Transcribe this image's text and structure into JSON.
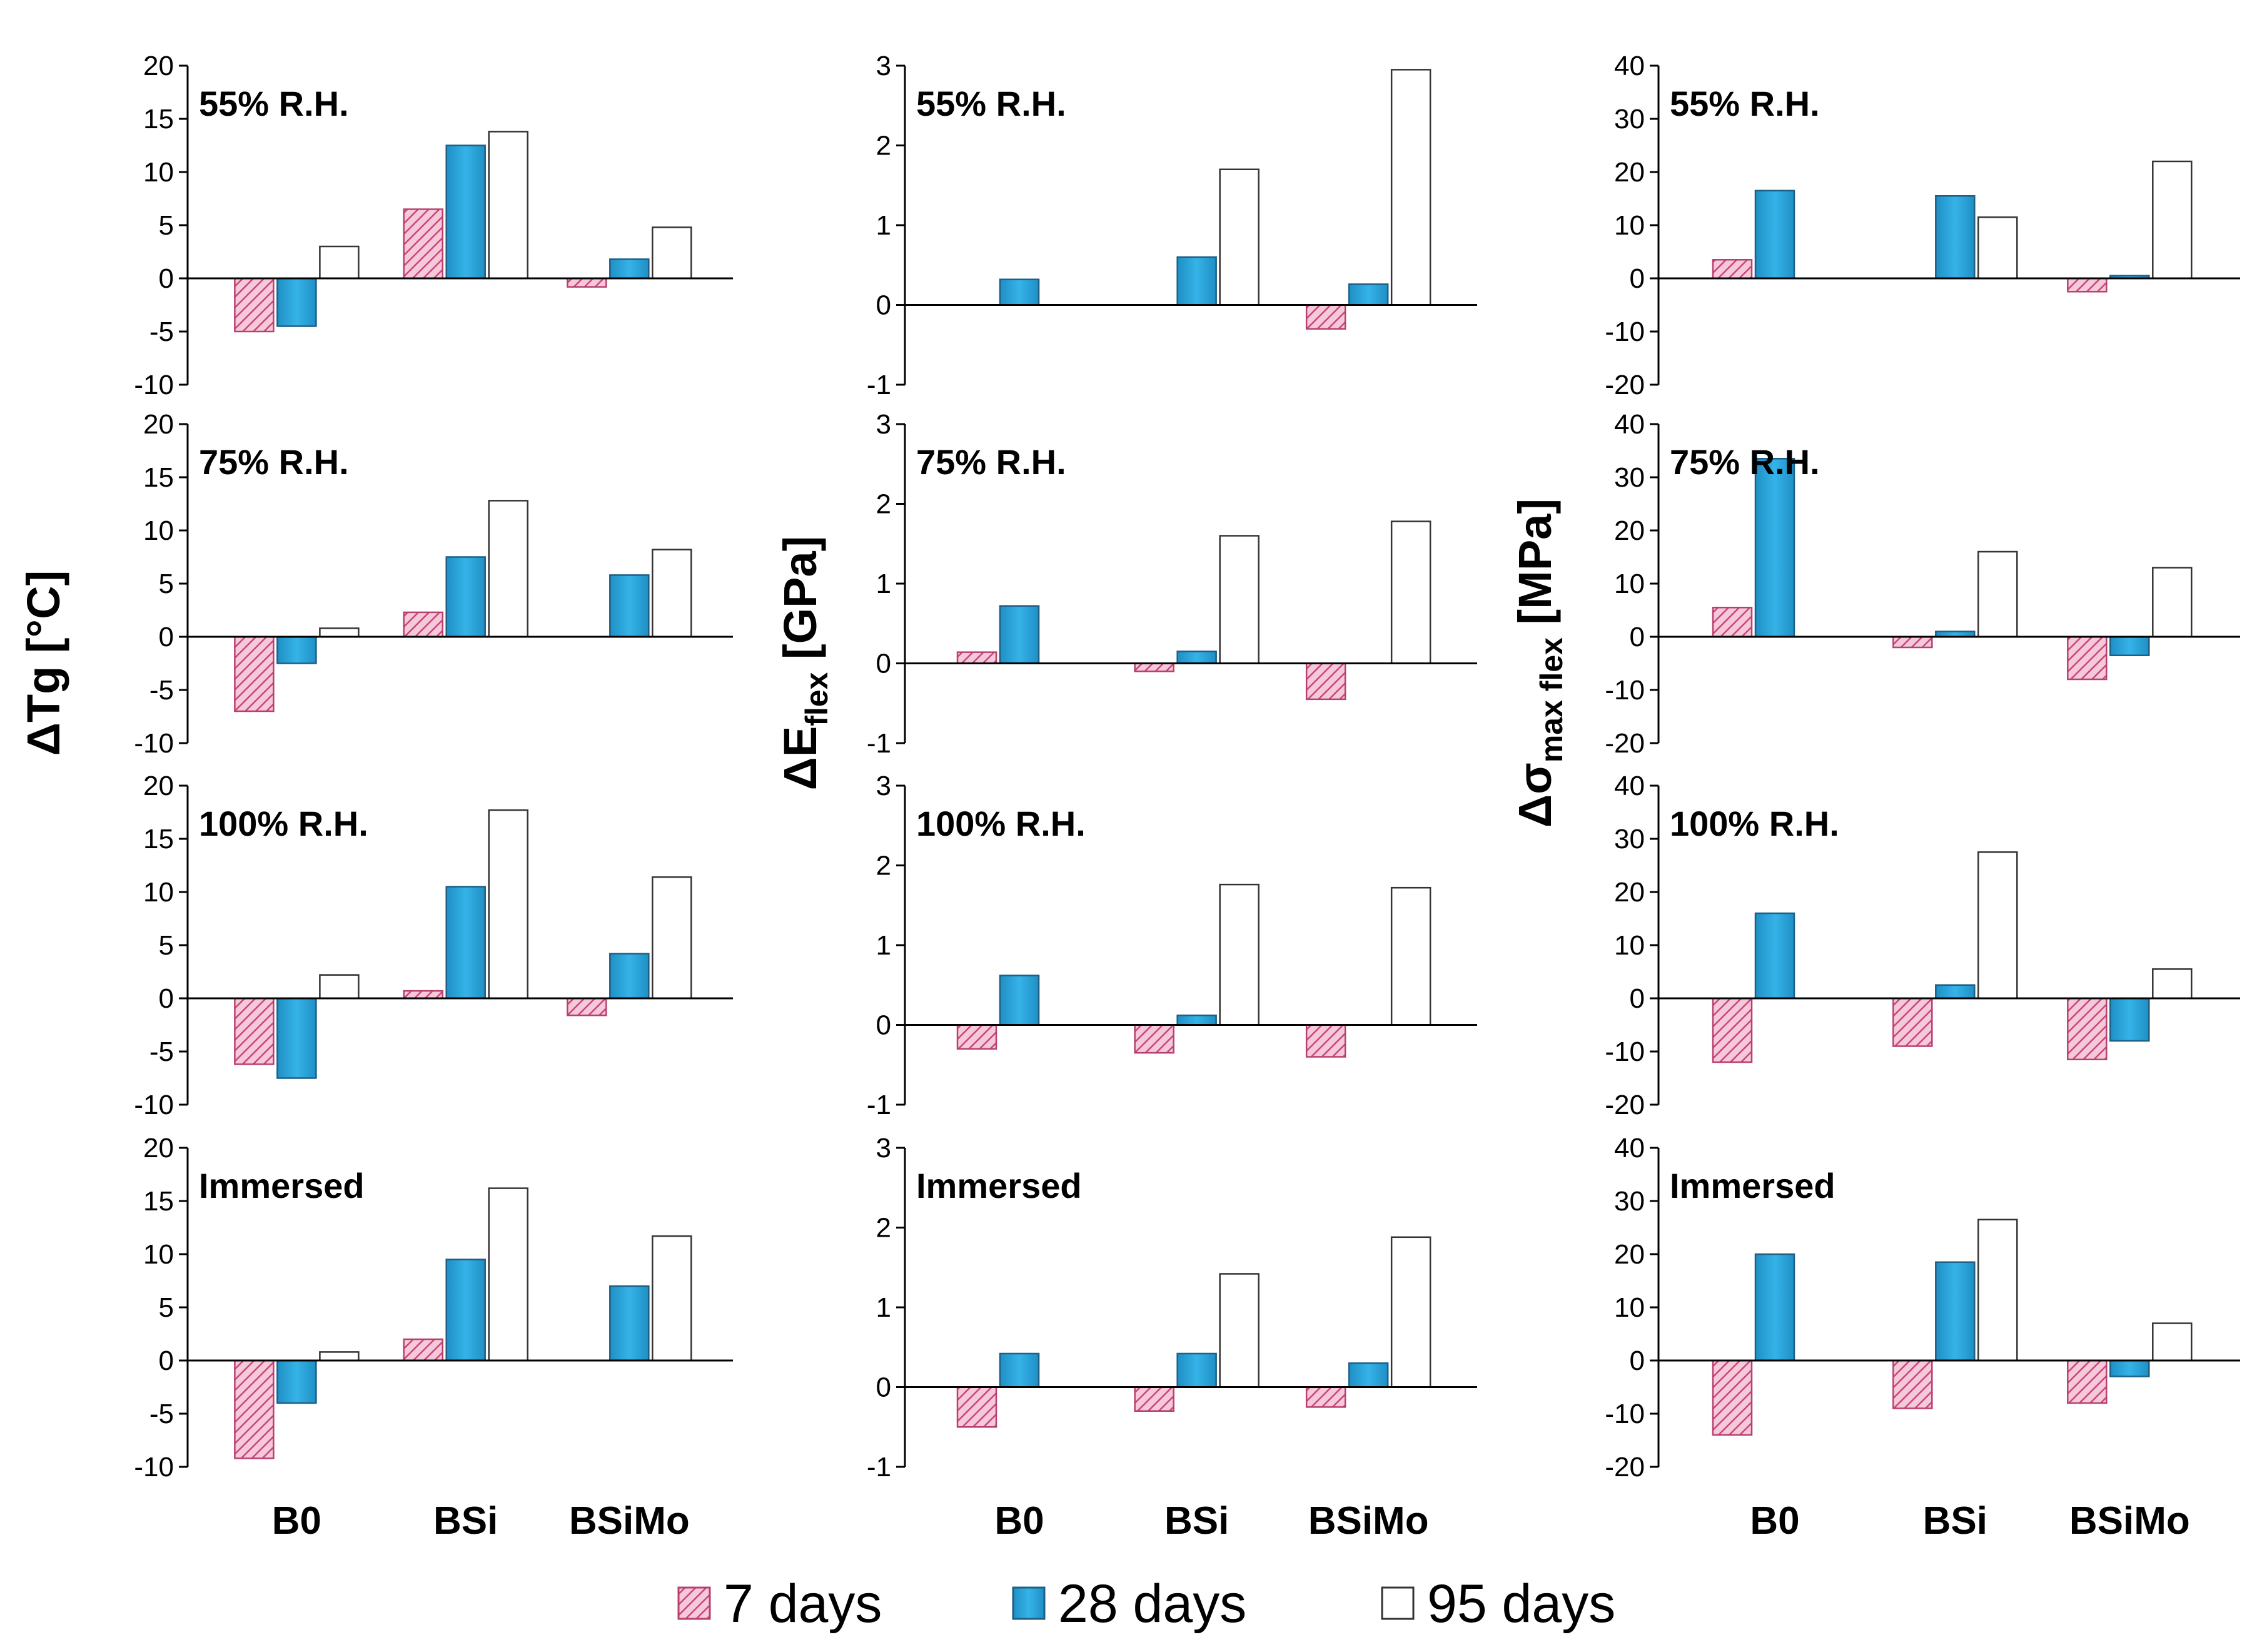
{
  "chart_data": {
    "type": "bar",
    "title": "",
    "categories": [
      "B0",
      "BSi",
      "BSiMo"
    ],
    "legend": {
      "placement": "bottom",
      "entries": [
        {
          "name": "7 days",
          "pattern": "pink-hatched",
          "color": "#e26b9b"
        },
        {
          "name": "28 days",
          "pattern": "solid",
          "color": "#2aa7de"
        },
        {
          "name": "95 days",
          "pattern": "hollow",
          "color": "#ffffff"
        }
      ]
    },
    "conditions": [
      "55% R.H.",
      "75% R.H.",
      "100% R.H.",
      "Immersed"
    ],
    "columns": [
      {
        "ylabel_main": "ΔTg [°C]",
        "ylim": [
          -10,
          20
        ],
        "ticks": [
          "-10",
          "-5",
          "0",
          "5",
          "10",
          "15",
          "20"
        ],
        "tick_values": [
          -10,
          -5,
          0,
          5,
          10,
          15,
          20
        ],
        "panels": [
          {
            "label": "55% R.H.",
            "series": [
              {
                "name": "7 days",
                "values": [
                  -5.0,
                  6.5,
                  -0.8
                ]
              },
              {
                "name": "28 days",
                "values": [
                  -4.5,
                  12.5,
                  1.8
                ]
              },
              {
                "name": "95 days",
                "values": [
                  3.0,
                  13.8,
                  4.8
                ]
              }
            ]
          },
          {
            "label": "75% R.H.",
            "series": [
              {
                "name": "7 days",
                "values": [
                  -7.0,
                  2.3,
                  0.0
                ]
              },
              {
                "name": "28 days",
                "values": [
                  -2.5,
                  7.5,
                  5.8
                ]
              },
              {
                "name": "95 days",
                "values": [
                  0.8,
                  12.8,
                  8.2
                ]
              }
            ]
          },
          {
            "label": "100% R.H.",
            "series": [
              {
                "name": "7 days",
                "values": [
                  -6.2,
                  0.7,
                  -1.6
                ]
              },
              {
                "name": "28 days",
                "values": [
                  -7.5,
                  10.5,
                  4.2
                ]
              },
              {
                "name": "95 days",
                "values": [
                  2.2,
                  17.7,
                  11.4
                ]
              }
            ]
          },
          {
            "label": "Immersed",
            "series": [
              {
                "name": "7 days",
                "values": [
                  -9.2,
                  2.0,
                  0.0
                ]
              },
              {
                "name": "28 days",
                "values": [
                  -4.0,
                  9.5,
                  7.0
                ]
              },
              {
                "name": "95 days",
                "values": [
                  0.8,
                  16.2,
                  11.7
                ]
              }
            ]
          }
        ]
      },
      {
        "ylabel_main": "ΔE",
        "ylabel_sub": "flex",
        "ylabel_tail": " [GPa]",
        "ylim": [
          -1,
          3
        ],
        "ticks": [
          "-1",
          "0",
          "1",
          "2",
          "3"
        ],
        "tick_values": [
          -1,
          0,
          1,
          2,
          3
        ],
        "panels": [
          {
            "label": "55% R.H.",
            "series": [
              {
                "name": "7 days",
                "values": [
                  0.0,
                  0.0,
                  -0.3
                ]
              },
              {
                "name": "28 days",
                "values": [
                  0.32,
                  0.6,
                  0.26
                ]
              },
              {
                "name": "95 days",
                "values": [
                  0.0,
                  1.7,
                  2.95
                ]
              }
            ]
          },
          {
            "label": "75% R.H.",
            "series": [
              {
                "name": "7 days",
                "values": [
                  0.14,
                  -0.1,
                  -0.45
                ]
              },
              {
                "name": "28 days",
                "values": [
                  0.72,
                  0.15,
                  0.0
                ]
              },
              {
                "name": "95 days",
                "values": [
                  0.0,
                  1.6,
                  1.78
                ]
              }
            ]
          },
          {
            "label": "100% R.H.",
            "series": [
              {
                "name": "7 days",
                "values": [
                  -0.3,
                  -0.35,
                  -0.4
                ]
              },
              {
                "name": "28 days",
                "values": [
                  0.62,
                  0.12,
                  0.0
                ]
              },
              {
                "name": "95 days",
                "values": [
                  0.0,
                  1.76,
                  1.72
                ]
              }
            ]
          },
          {
            "label": "Immersed",
            "series": [
              {
                "name": "7 days",
                "values": [
                  -0.5,
                  -0.3,
                  -0.25
                ]
              },
              {
                "name": "28 days",
                "values": [
                  0.42,
                  0.42,
                  0.3
                ]
              },
              {
                "name": "95 days",
                "values": [
                  0.0,
                  1.42,
                  1.88
                ]
              }
            ]
          }
        ]
      },
      {
        "ylabel_main": "Δσ",
        "ylabel_sub": "max flex",
        "ylabel_tail": " [MPa]",
        "ylim": [
          -20,
          40
        ],
        "ticks": [
          "-20",
          "-10",
          "0",
          "10",
          "20",
          "30",
          "40"
        ],
        "tick_values": [
          -20,
          -10,
          0,
          10,
          20,
          30,
          40
        ],
        "panels": [
          {
            "label": "55% R.H.",
            "series": [
              {
                "name": "7 days",
                "values": [
                  3.5,
                  0.0,
                  -2.5
                ]
              },
              {
                "name": "28 days",
                "values": [
                  16.5,
                  15.5,
                  0.5
                ]
              },
              {
                "name": "95 days",
                "values": [
                  0.0,
                  11.5,
                  22.0
                ]
              }
            ]
          },
          {
            "label": "75% R.H.",
            "series": [
              {
                "name": "7 days",
                "values": [
                  5.5,
                  -2.0,
                  -8.0
                ]
              },
              {
                "name": "28 days",
                "values": [
                  33.5,
                  1.0,
                  -3.5
                ]
              },
              {
                "name": "95 days",
                "values": [
                  0.0,
                  16.0,
                  13.0
                ]
              }
            ]
          },
          {
            "label": "100% R.H.",
            "series": [
              {
                "name": "7 days",
                "values": [
                  -12.0,
                  -9.0,
                  -11.5
                ]
              },
              {
                "name": "28 days",
                "values": [
                  16.0,
                  2.5,
                  -8.0
                ]
              },
              {
                "name": "95 days",
                "values": [
                  0.0,
                  27.5,
                  5.5
                ]
              }
            ]
          },
          {
            "label": "Immersed",
            "series": [
              {
                "name": "7 days",
                "values": [
                  -14.0,
                  -9.0,
                  -8.0
                ]
              },
              {
                "name": "28 days",
                "values": [
                  20.0,
                  18.5,
                  -3.0
                ]
              },
              {
                "name": "95 days",
                "values": [
                  0.0,
                  26.5,
                  7.0
                ]
              }
            ]
          }
        ]
      }
    ]
  }
}
